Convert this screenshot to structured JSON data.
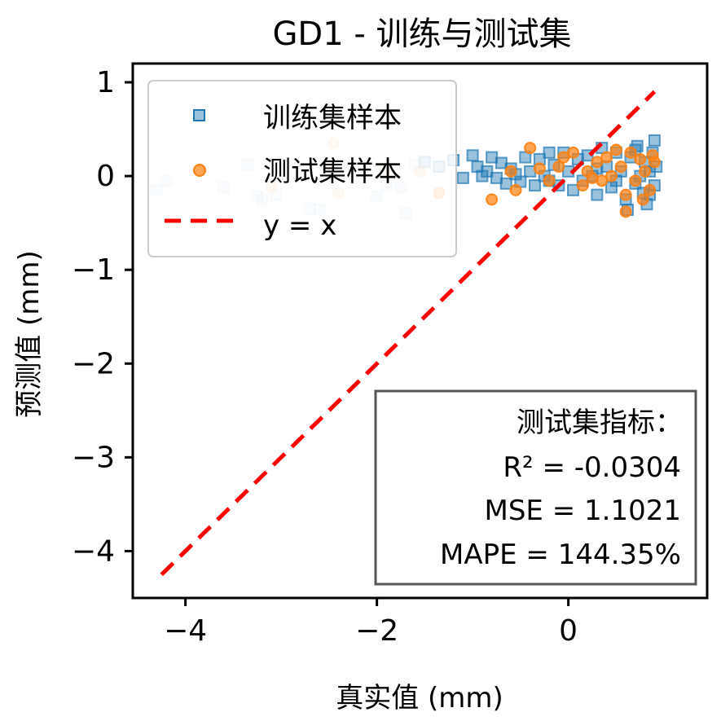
{
  "chart_data": {
    "type": "scatter",
    "title": "GD1 - 训练与测试集",
    "xlabel": "真实值 (mm)",
    "ylabel": "预测值 (mm)",
    "xlim": [
      -4.55,
      1.45
    ],
    "ylim": [
      -4.5,
      1.2
    ],
    "x_ticks": [
      -4,
      -2,
      0
    ],
    "x_tick_labels": [
      "−4",
      "−2",
      "0"
    ],
    "y_ticks": [
      1,
      0,
      -1,
      -2,
      -3,
      -4
    ],
    "y_tick_labels": [
      "1",
      "0",
      "−1",
      "−2",
      "−3",
      "−4"
    ],
    "grid": false,
    "legend_position": "upper-left",
    "series": [
      {
        "name": "训练集样本",
        "marker": "square",
        "color": "#1f77b4",
        "points": [
          [
            -4.3,
            -0.15
          ],
          [
            -4.2,
            -0.05
          ],
          [
            -3.6,
            -0.12
          ],
          [
            -3.35,
            0.12
          ],
          [
            -3.25,
            -0.22
          ],
          [
            -3.2,
            -0.25
          ],
          [
            -3.05,
            -0.2
          ],
          [
            -2.7,
            -0.35
          ],
          [
            -2.6,
            -0.36
          ],
          [
            -2.4,
            0.05
          ],
          [
            -2.0,
            -0.22
          ],
          [
            -1.9,
            -0.1
          ],
          [
            -1.75,
            -0.12
          ],
          [
            -1.7,
            -0.4
          ],
          [
            -1.6,
            0.12
          ],
          [
            -1.5,
            0.15
          ],
          [
            -1.35,
            0.1
          ],
          [
            -1.2,
            0.17
          ],
          [
            -1.1,
            -0.02
          ],
          [
            -1.0,
            0.22
          ],
          [
            -0.95,
            0.1
          ],
          [
            -0.9,
            0.0
          ],
          [
            -0.85,
            0.05
          ],
          [
            -0.75,
            -0.02
          ],
          [
            -0.7,
            0.14
          ],
          [
            -0.65,
            -0.08
          ],
          [
            -0.6,
            0.08
          ],
          [
            -0.55,
            0.02
          ],
          [
            -0.5,
            -0.06
          ],
          [
            -0.45,
            0.2
          ],
          [
            -0.4,
            0.05
          ],
          [
            -0.35,
            -0.1
          ],
          [
            -0.3,
            0.18
          ],
          [
            -0.25,
            0.0
          ],
          [
            -0.2,
            -0.05
          ],
          [
            -0.15,
            0.12
          ],
          [
            -0.1,
            -0.1
          ],
          [
            -0.05,
            0.25
          ],
          [
            0.0,
            0.05
          ],
          [
            0.05,
            -0.15
          ],
          [
            0.1,
            0.18
          ],
          [
            0.15,
            -0.05
          ],
          [
            0.2,
            0.22
          ],
          [
            0.25,
            0.0
          ],
          [
            0.3,
            -0.2
          ],
          [
            0.35,
            0.3
          ],
          [
            0.4,
            0.1
          ],
          [
            0.45,
            -0.12
          ],
          [
            0.5,
            0.25
          ],
          [
            0.55,
            0.05
          ],
          [
            0.6,
            -0.25
          ],
          [
            0.62,
            -0.36
          ],
          [
            0.65,
            0.2
          ],
          [
            0.7,
            -0.08
          ],
          [
            0.72,
            0.32
          ],
          [
            0.75,
            0.0
          ],
          [
            0.78,
            -0.18
          ],
          [
            0.8,
            0.15
          ],
          [
            0.82,
            -0.3
          ],
          [
            0.85,
            0.05
          ],
          [
            0.88,
            0.25
          ],
          [
            0.9,
            -0.1
          ],
          [
            0.9,
            0.38
          ],
          [
            0.92,
            0.1
          ],
          [
            -0.8,
            0.2
          ],
          [
            -0.2,
            0.25
          ],
          [
            0.3,
            0.08
          ],
          [
            0.5,
            -0.05
          ],
          [
            0.7,
            0.28
          ],
          [
            0.85,
            -0.2
          ]
        ]
      },
      {
        "name": "测试集样本",
        "marker": "circle",
        "color": "#ff7f0e",
        "points": [
          [
            -3.1,
            -0.12
          ],
          [
            -2.45,
            0.35
          ],
          [
            -2.5,
            0.1
          ],
          [
            -2.4,
            -0.18
          ],
          [
            -1.9,
            0.08
          ],
          [
            -1.55,
            0.05
          ],
          [
            -1.35,
            -0.18
          ],
          [
            -0.8,
            -0.25
          ],
          [
            -0.6,
            0.05
          ],
          [
            -0.55,
            -0.15
          ],
          [
            -0.4,
            0.3
          ],
          [
            -0.3,
            0.08
          ],
          [
            -0.2,
            -0.05
          ],
          [
            -0.1,
            0.1
          ],
          [
            0.05,
            0.25
          ],
          [
            0.15,
            -0.1
          ],
          [
            0.2,
            0.05
          ],
          [
            0.3,
            0.15
          ],
          [
            0.35,
            -0.05
          ],
          [
            0.4,
            0.2
          ],
          [
            0.45,
            0.0
          ],
          [
            0.55,
            0.1
          ],
          [
            0.6,
            -0.2
          ],
          [
            0.65,
            0.25
          ],
          [
            0.7,
            -0.05
          ],
          [
            0.75,
            0.18
          ],
          [
            0.8,
            0.05
          ],
          [
            0.85,
            -0.15
          ],
          [
            0.88,
            0.22
          ],
          [
            0.9,
            0.15
          ],
          [
            0.6,
            -0.38
          ],
          [
            0.5,
            0.28
          ],
          [
            0.25,
            -0.02
          ],
          [
            -0.05,
            0.2
          ],
          [
            0.78,
            -0.25
          ]
        ]
      },
      {
        "name": "y = x",
        "kind": "line",
        "style": "dashed",
        "color": "#ff0000",
        "points": [
          [
            -4.25,
            -4.25
          ],
          [
            0.9,
            0.9
          ]
        ]
      }
    ],
    "annotation": {
      "title": "测试集指标：",
      "lines": [
        "R² = -0.0304",
        "MSE = 1.1021",
        "MAPE = 144.35%"
      ],
      "position": "lower-right"
    }
  }
}
